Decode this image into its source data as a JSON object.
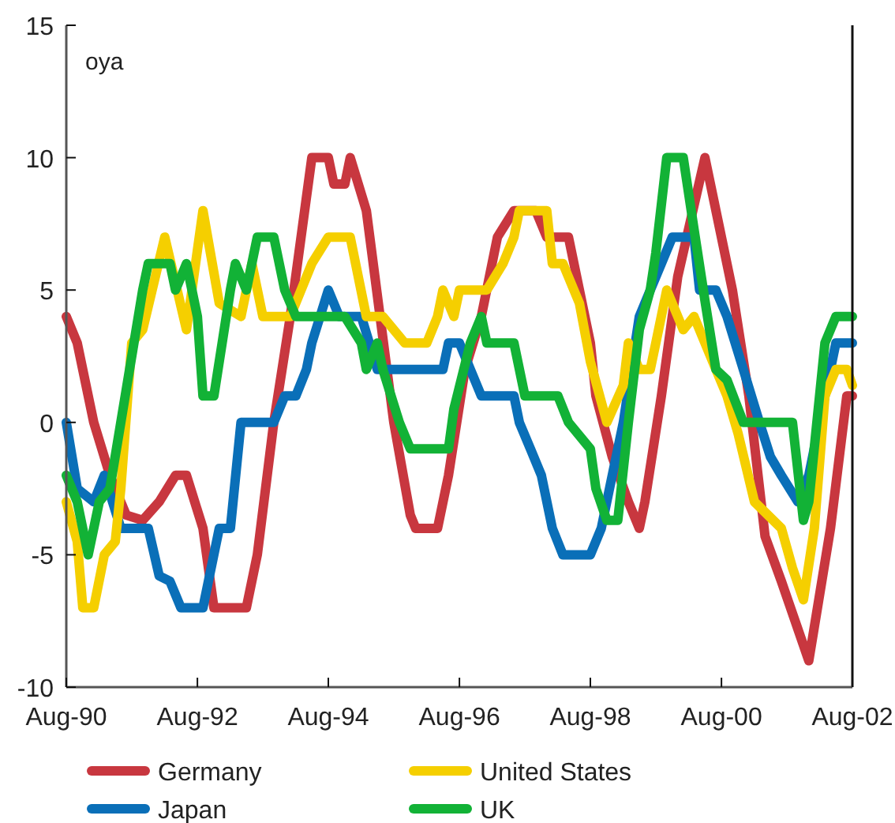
{
  "chart_data": {
    "type": "line",
    "annotations": [
      "oya"
    ],
    "xlim": [
      "1990-08",
      "2002-08"
    ],
    "xticks": [
      {
        "value": "1990-08",
        "label": "Aug-90"
      },
      {
        "value": "1992-08",
        "label": "Aug-92"
      },
      {
        "value": "1994-08",
        "label": "Aug-94"
      },
      {
        "value": "1996-08",
        "label": "Aug-96"
      },
      {
        "value": "1998-08",
        "label": "Aug-98"
      },
      {
        "value": "2000-08",
        "label": "Aug-00"
      },
      {
        "value": "2002-08",
        "label": "Aug-02"
      }
    ],
    "ylim": [
      -10,
      15
    ],
    "yticks": [
      -10,
      -5,
      0,
      5,
      10,
      15
    ],
    "legend": "bottom",
    "line_style": "solid",
    "series": [
      {
        "name": "Germany",
        "color": "#c8373f",
        "x": [
          "1990-08",
          "1990-10",
          "1991-01",
          "1991-04",
          "1991-07",
          "1991-10",
          "1992-01",
          "1992-04",
          "1992-06",
          "1992-09",
          "1992-11",
          "1993-05",
          "1993-07",
          "1993-10",
          "1994-01",
          "1994-05",
          "1994-08",
          "1994-09",
          "1994-11",
          "1994-12",
          "1995-03",
          "1995-08",
          "1995-11",
          "1995-12",
          "1996-04",
          "1996-06",
          "1996-09",
          "1996-12",
          "1997-03",
          "1997-06",
          "1997-10",
          "1997-12",
          "1998-04",
          "1998-06",
          "1998-08",
          "1998-09",
          "1998-12",
          "1999-03",
          "1999-05",
          "1999-06",
          "1999-09",
          "1999-12",
          "2000-05",
          "2000-10",
          "2001-01",
          "2001-04",
          "2001-07",
          "2001-12",
          "2002-04",
          "2002-07",
          "2002-08"
        ],
        "values": [
          4,
          3,
          0,
          -2,
          -3.5,
          -3.7,
          -3,
          -2,
          -2,
          -4,
          -7,
          -7,
          -5,
          0,
          4,
          10,
          10,
          9,
          9,
          10,
          8,
          0,
          -3.5,
          -4,
          -4,
          -2,
          2,
          4,
          7,
          8,
          8,
          7,
          7,
          5,
          3,
          1,
          -1.3,
          -3,
          -4,
          -3,
          1,
          5.5,
          10,
          5,
          1,
          -4.3,
          -6,
          -9,
          -4,
          1,
          1
        ]
      },
      {
        "name": "Japan",
        "color": "#0a6fb8",
        "x": [
          "1990-08",
          "1990-10",
          "1991-01",
          "1991-03",
          "1991-06",
          "1991-11",
          "1992-01",
          "1992-03",
          "1992-05",
          "1992-09",
          "1992-12",
          "1993-02",
          "1993-04",
          "1993-10",
          "1993-12",
          "1994-02",
          "1994-04",
          "1994-05",
          "1994-08",
          "1994-10",
          "1995-02",
          "1995-05",
          "1996-05",
          "1996-06",
          "1996-08",
          "1996-12",
          "1997-06",
          "1997-07",
          "1997-09",
          "1997-11",
          "1998-01",
          "1998-03",
          "1998-08",
          "1998-10",
          "1998-12",
          "1999-02",
          "1999-05",
          "1999-09",
          "1999-11",
          "2000-03",
          "2000-04",
          "2000-07",
          "2000-09",
          "2000-12",
          "2001-03",
          "2001-05",
          "2001-07",
          "2001-10",
          "2001-12",
          "2002-03",
          "2002-05",
          "2002-08"
        ],
        "values": [
          0,
          -2.5,
          -3,
          -2,
          -4,
          -4,
          -5.8,
          -6,
          -7,
          -7,
          -4,
          -4,
          0,
          0,
          1,
          1,
          2,
          3,
          5,
          4,
          4,
          2,
          2,
          3,
          3,
          1,
          1,
          0,
          -1,
          -2,
          -4,
          -5,
          -5,
          -4,
          -2,
          0,
          4,
          6,
          7,
          7,
          5,
          5,
          4,
          2,
          0,
          -1.3,
          -2,
          -3,
          -2,
          1,
          3,
          3
        ]
      },
      {
        "name": "United States",
        "color": "#f5cf00",
        "x": [
          "1990-08",
          "1990-10",
          "1990-11",
          "1991-01",
          "1991-03",
          "1991-05",
          "1991-06",
          "1991-08",
          "1991-10",
          "1992-02",
          "1992-06",
          "1992-08",
          "1992-09",
          "1992-12",
          "1993-04",
          "1993-06",
          "1993-08",
          "1994-01",
          "1994-05",
          "1994-08",
          "1994-12",
          "1995-03",
          "1995-06",
          "1995-10",
          "1996-02",
          "1996-04",
          "1996-05",
          "1996-07",
          "1996-08",
          "1997-01",
          "1997-04",
          "1997-06",
          "1997-07",
          "1997-12",
          "1998-01",
          "1998-03",
          "1998-06",
          "1998-08",
          "1998-11",
          "1999-02",
          "1999-03",
          "1999-05",
          "1999-07",
          "1999-08",
          "1999-10",
          "2000-01",
          "2000-03",
          "2000-05",
          "2000-07",
          "2000-09",
          "2000-11",
          "2001-02",
          "2001-07",
          "2001-09",
          "2001-11",
          "2002-01",
          "2002-03",
          "2002-05",
          "2002-07",
          "2002-08"
        ],
        "values": [
          -3,
          -4.5,
          -7,
          -7,
          -5,
          -4.5,
          -2.5,
          3,
          3.5,
          7,
          3.5,
          6.5,
          8,
          4.5,
          4,
          6,
          4,
          4,
          6,
          7,
          7,
          4,
          4,
          3,
          3,
          4,
          5,
          4,
          5,
          5,
          6,
          7,
          8,
          8,
          6,
          6,
          4.5,
          2.3,
          0,
          1.4,
          3,
          2,
          2,
          3,
          5,
          3.5,
          4,
          3,
          2,
          1,
          -0.4,
          -3,
          -4,
          -5.5,
          -6.7,
          -4,
          1,
          2,
          2,
          1.4
        ]
      },
      {
        "name": "UK",
        "color": "#12b236",
        "x": [
          "1990-08",
          "1990-10",
          "1990-12",
          "1991-02",
          "1991-04",
          "1991-10",
          "1991-11",
          "1992-03",
          "1992-04",
          "1992-06",
          "1992-08",
          "1992-09",
          "1992-11",
          "1993-02",
          "1993-03",
          "1993-05",
          "1993-07",
          "1993-10",
          "1993-12",
          "1994-02",
          "1994-11",
          "1995-02",
          "1995-03",
          "1995-05",
          "1995-06",
          "1995-09",
          "1995-11",
          "1996-06",
          "1996-07",
          "1996-10",
          "1996-12",
          "1997-01",
          "1997-06",
          "1997-08",
          "1998-02",
          "1998-04",
          "1998-08",
          "1998-09",
          "1998-11",
          "1999-01",
          "1999-03",
          "1999-05",
          "1999-07",
          "1999-08",
          "1999-10",
          "2000-01",
          "2000-03",
          "2000-05",
          "2000-07",
          "2000-09",
          "2000-12",
          "2001-09",
          "2001-11",
          "2001-12",
          "2002-03",
          "2002-05",
          "2002-08"
        ],
        "values": [
          -2,
          -3,
          -5,
          -3,
          -2.5,
          5,
          6,
          6,
          5,
          6,
          4,
          1,
          1,
          5,
          6,
          5,
          7,
          7,
          5,
          4,
          4,
          3,
          2,
          3,
          2,
          0,
          -1,
          -1,
          0.5,
          3,
          4,
          3,
          3,
          1,
          1,
          0,
          -1,
          -2.5,
          -3.7,
          -3.7,
          0,
          3.5,
          5,
          6.4,
          10,
          10,
          7.3,
          4.6,
          2,
          1.6,
          0,
          0,
          -3.7,
          -3,
          3,
          4,
          4
        ]
      }
    ]
  }
}
